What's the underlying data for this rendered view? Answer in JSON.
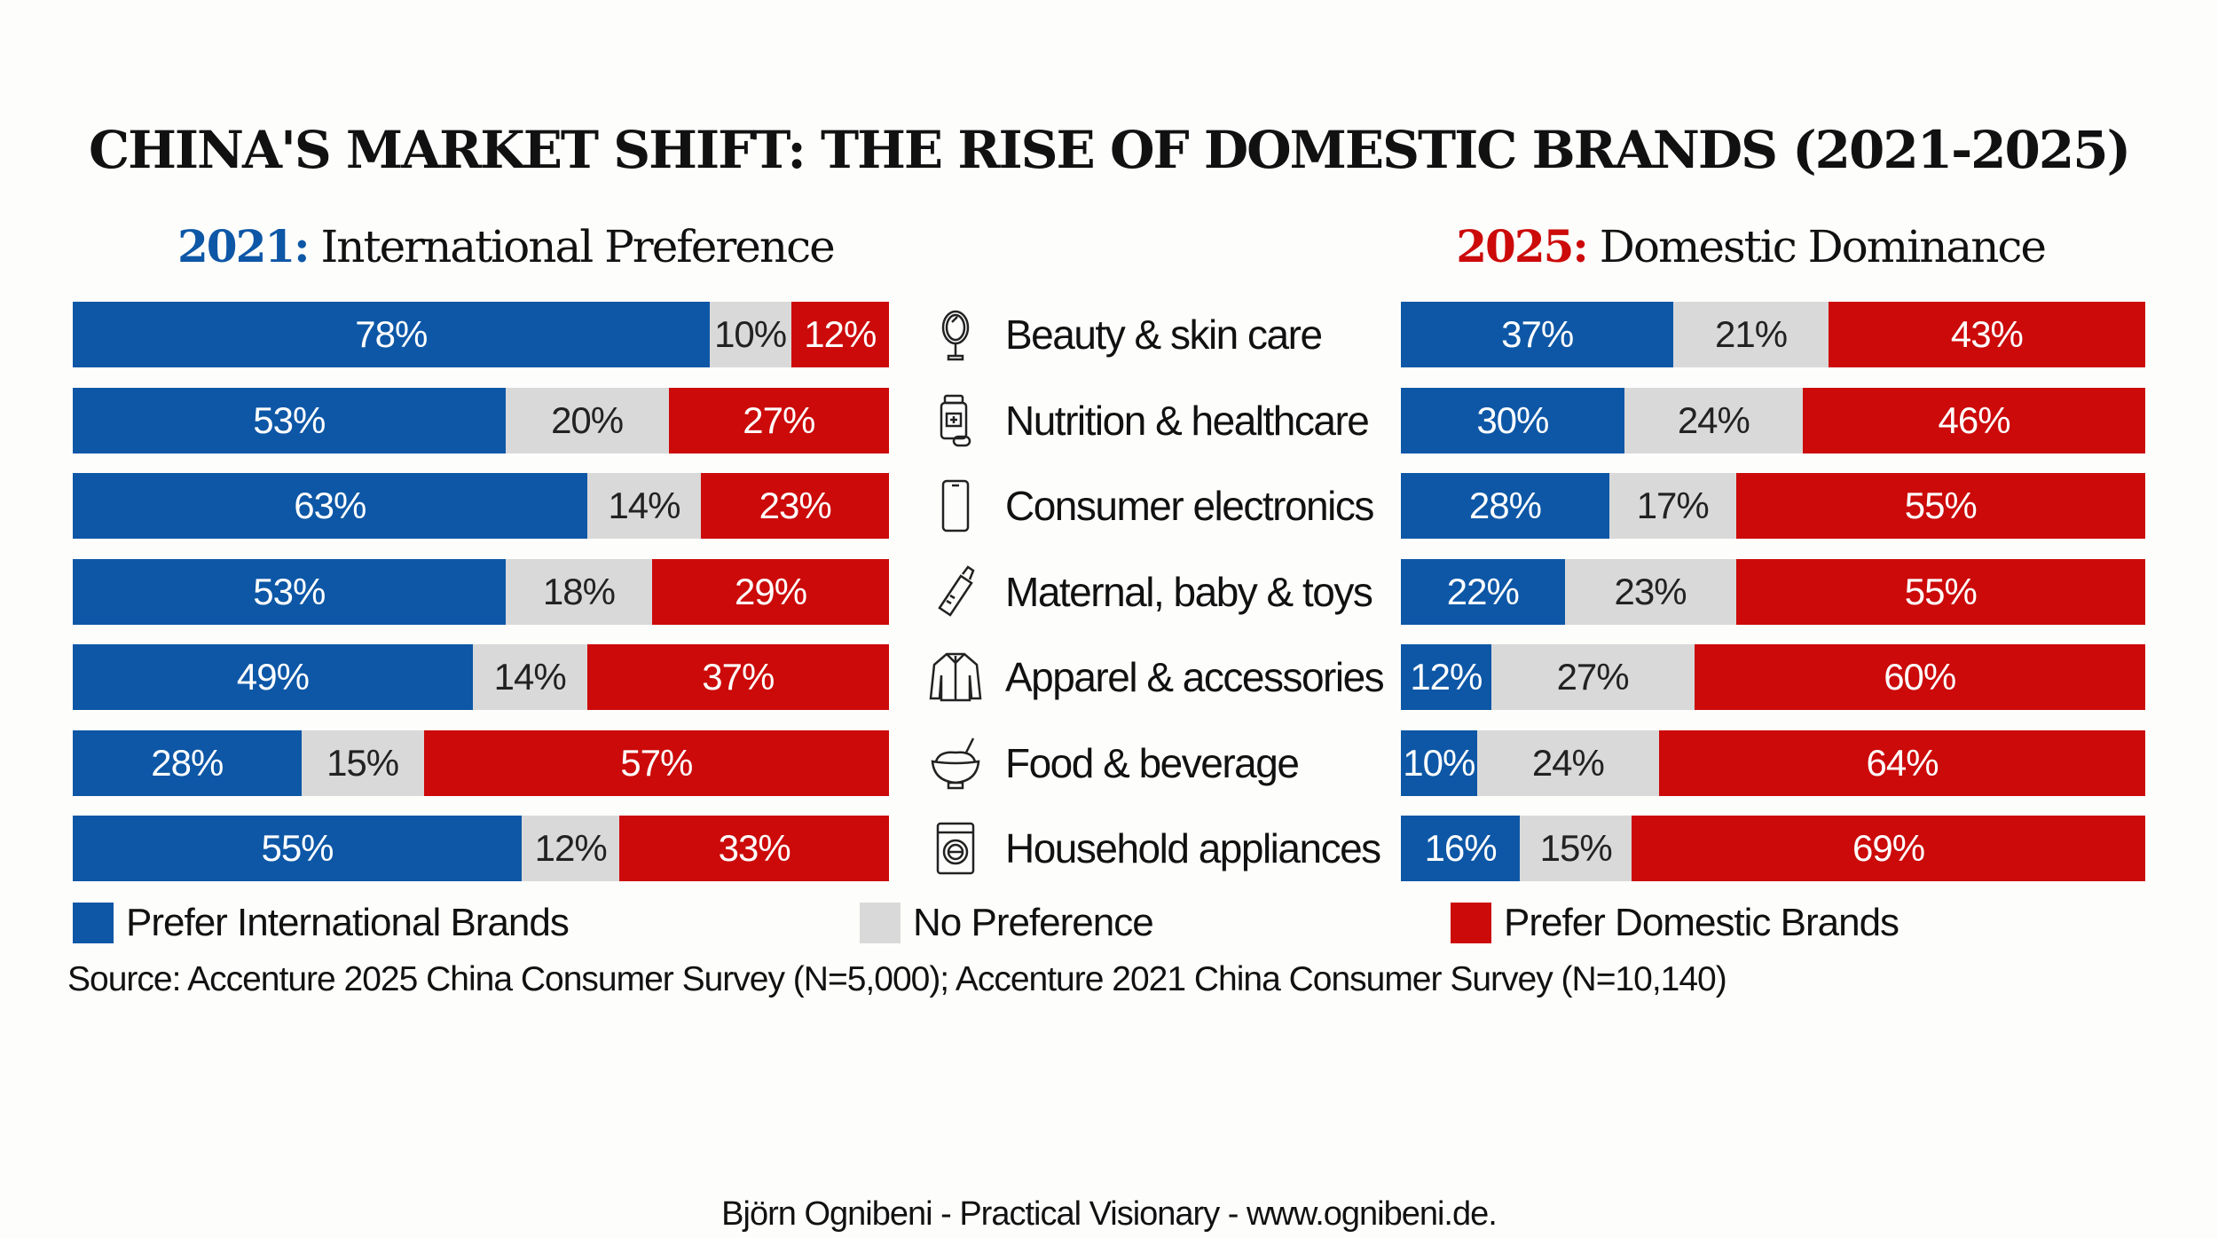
{
  "title": "CHINA'S MARKET SHIFT: THE RISE OF DOMESTIC BRANDS (2021-2025)",
  "panels": {
    "left": {
      "year": "2021:",
      "subtitle": "International Preference"
    },
    "right": {
      "year": "2025:",
      "subtitle": "Domestic Dominance"
    }
  },
  "colors": {
    "international": "#0d57a6",
    "no_preference": "#d9d9d9",
    "domestic": "#cc0a0a"
  },
  "chart_data": {
    "type": "bar",
    "stacked": true,
    "orientation": "horizontal",
    "categories": [
      "Beauty & skin care",
      "Nutrition & healthcare",
      "Consumer electronics",
      "Maternal, baby & toys",
      "Apparel & accessories",
      "Food & beverage",
      "Household appliances"
    ],
    "category_icons": [
      "mirror-icon",
      "medicine-bottle-icon",
      "smartphone-icon",
      "baby-bottle-icon",
      "jacket-icon",
      "food-bowl-icon",
      "washing-machine-icon"
    ],
    "legend": [
      "Prefer International Brands",
      "No Preference",
      "Prefer Domestic Brands"
    ],
    "legend_placement": "bottom",
    "years": [
      {
        "year": "2021",
        "series": [
          {
            "name": "Prefer International Brands",
            "values": [
              78,
              53,
              63,
              53,
              49,
              28,
              55
            ]
          },
          {
            "name": "No Preference",
            "values": [
              10,
              20,
              14,
              18,
              14,
              15,
              12
            ]
          },
          {
            "name": "Prefer Domestic Brands",
            "values": [
              12,
              27,
              23,
              29,
              37,
              57,
              33
            ]
          }
        ]
      },
      {
        "year": "2025",
        "series": [
          {
            "name": "Prefer International Brands",
            "values": [
              37,
              30,
              28,
              22,
              12,
              10,
              16
            ]
          },
          {
            "name": "No Preference",
            "values": [
              21,
              24,
              17,
              23,
              27,
              24,
              15
            ]
          },
          {
            "name": "Prefer Domestic Brands",
            "values": [
              43,
              46,
              55,
              55,
              60,
              64,
              69
            ]
          }
        ]
      }
    ],
    "unit": "%"
  },
  "source": "Source: Accenture 2025 China Consumer Survey (N=5,000); Accenture 2021 China Consumer Survey (N=10,140)",
  "footer": "Björn Ognibeni - Practical Visionary - www.ognibeni.de."
}
